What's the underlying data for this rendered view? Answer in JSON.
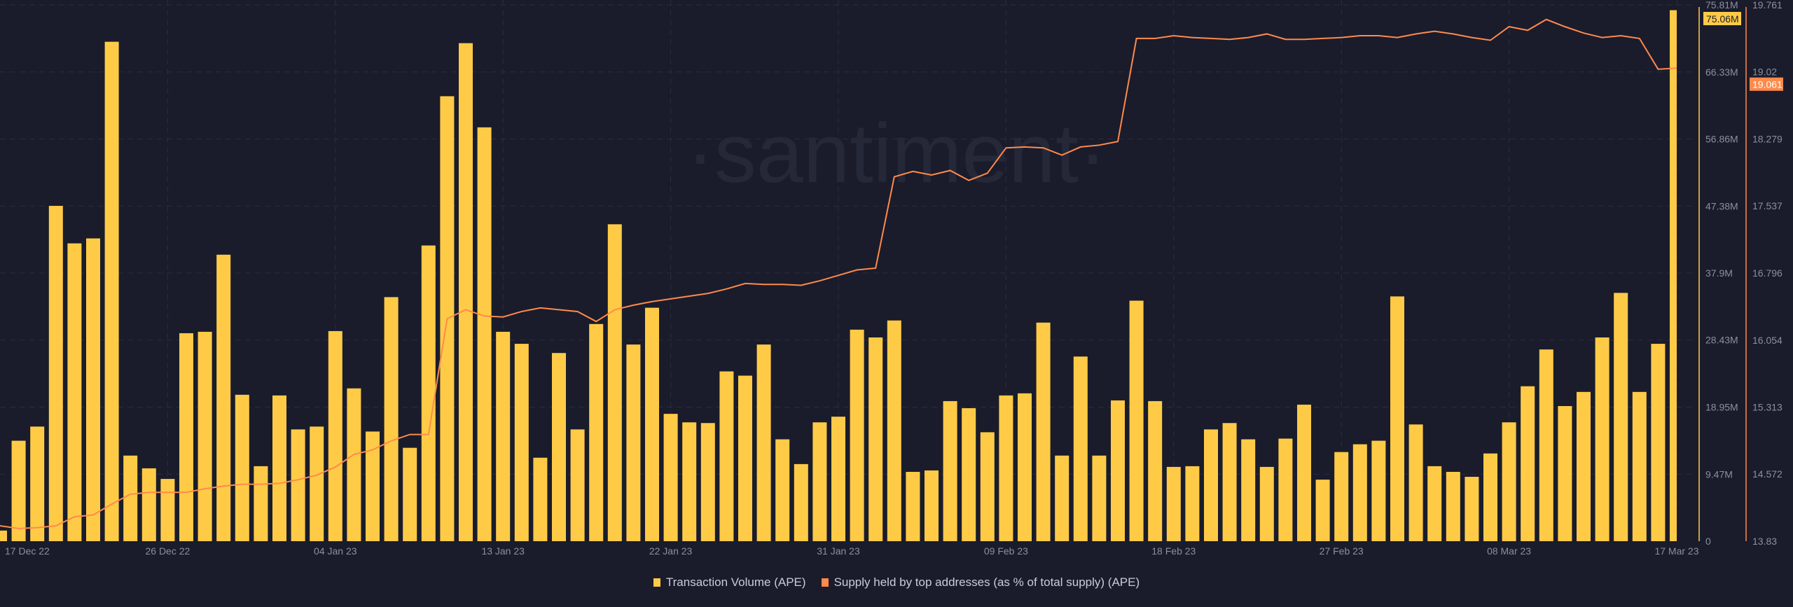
{
  "chart_data": {
    "type": "bar+line",
    "watermark": "·santiment·",
    "dates": [
      "17 Dec 22",
      "18 Dec 22",
      "19 Dec 22",
      "20 Dec 22",
      "21 Dec 22",
      "22 Dec 22",
      "23 Dec 22",
      "24 Dec 22",
      "25 Dec 22",
      "26 Dec 22",
      "27 Dec 22",
      "28 Dec 22",
      "29 Dec 22",
      "30 Dec 22",
      "31 Dec 22",
      "01 Jan 23",
      "02 Jan 23",
      "03 Jan 23",
      "04 Jan 23",
      "05 Jan 23",
      "06 Jan 23",
      "07 Jan 23",
      "08 Jan 23",
      "09 Jan 23",
      "10 Jan 23",
      "11 Jan 23",
      "12 Jan 23",
      "13 Jan 23",
      "14 Jan 23",
      "15 Jan 23",
      "16 Jan 23",
      "17 Jan 23",
      "18 Jan 23",
      "19 Jan 23",
      "20 Jan 23",
      "21 Jan 23",
      "22 Jan 23",
      "23 Jan 23",
      "24 Jan 23",
      "25 Jan 23",
      "26 Jan 23",
      "27 Jan 23",
      "28 Jan 23",
      "29 Jan 23",
      "30 Jan 23",
      "31 Jan 23",
      "01 Feb 23",
      "02 Feb 23",
      "03 Feb 23",
      "04 Feb 23",
      "05 Feb 23",
      "06 Feb 23",
      "07 Feb 23",
      "08 Feb 23",
      "09 Feb 23",
      "10 Feb 23",
      "11 Feb 23",
      "12 Feb 23",
      "13 Feb 23",
      "14 Feb 23",
      "15 Feb 23",
      "16 Feb 23",
      "17 Feb 23",
      "18 Feb 23",
      "19 Feb 23",
      "20 Feb 23",
      "21 Feb 23",
      "22 Feb 23",
      "23 Feb 23",
      "24 Feb 23",
      "25 Feb 23",
      "26 Feb 23",
      "27 Feb 23",
      "28 Feb 23",
      "01 Mar 23",
      "02 Mar 23",
      "03 Mar 23",
      "04 Mar 23",
      "05 Mar 23",
      "06 Mar 23",
      "07 Mar 23",
      "08 Mar 23",
      "09 Mar 23",
      "10 Mar 23",
      "11 Mar 23",
      "12 Mar 23",
      "13 Mar 23",
      "14 Mar 23",
      "15 Mar 23",
      "16 Mar 23",
      "17 Mar 23"
    ],
    "x_tick_labels": [
      "17 Dec 22",
      "26 Dec 22",
      "04 Jan 23",
      "13 Jan 23",
      "22 Jan 23",
      "31 Jan 23",
      "09 Feb 23",
      "18 Feb 23",
      "27 Feb 23",
      "08 Mar 23",
      "17 Mar 23"
    ],
    "series": [
      {
        "name": "Transaction Volume (APE)",
        "type": "bar",
        "color": "#ffcb47",
        "unit": "M",
        "axis": "left",
        "values": [
          1.5,
          14.2,
          16.2,
          47.4,
          42.1,
          42.8,
          70.6,
          12.1,
          10.3,
          8.8,
          29.4,
          29.6,
          40.5,
          20.7,
          10.6,
          20.6,
          15.8,
          16.2,
          29.7,
          21.6,
          15.5,
          34.5,
          13.2,
          41.8,
          62.9,
          70.4,
          58.5,
          29.6,
          27.9,
          11.8,
          26.6,
          15.8,
          30.7,
          44.8,
          27.8,
          33.0,
          18.0,
          16.8,
          16.7,
          24.0,
          23.4,
          27.8,
          14.4,
          10.9,
          16.8,
          17.6,
          29.9,
          28.8,
          31.2,
          9.8,
          10.0,
          19.8,
          18.8,
          15.4,
          20.6,
          20.9,
          30.9,
          12.1,
          26.1,
          12.1,
          19.9,
          34.0,
          19.8,
          10.5,
          10.6,
          15.8,
          16.7,
          14.4,
          10.5,
          14.5,
          19.3,
          8.7,
          12.6,
          13.7,
          14.2,
          34.6,
          16.5,
          10.6,
          9.8,
          9.1,
          12.4,
          16.8,
          21.9,
          27.1,
          19.1,
          21.1,
          28.8,
          35.1,
          21.1,
          27.9,
          75.06
        ],
        "last_value_label": "75.06M"
      },
      {
        "name": "Supply held by top addresses (as % of total supply) (APE)",
        "type": "line",
        "color": "#ff8a4c",
        "axis": "right",
        "values": [
          14.0,
          13.97,
          13.98,
          14.0,
          14.1,
          14.12,
          14.24,
          14.35,
          14.37,
          14.37,
          14.37,
          14.41,
          14.44,
          14.46,
          14.46,
          14.47,
          14.51,
          14.56,
          14.65,
          14.79,
          14.84,
          14.94,
          15.01,
          15.01,
          16.29,
          16.39,
          16.32,
          16.31,
          16.37,
          16.41,
          16.39,
          16.37,
          16.26,
          16.39,
          16.44,
          16.48,
          16.51,
          16.54,
          16.57,
          16.62,
          16.68,
          16.67,
          16.67,
          16.66,
          16.71,
          16.77,
          16.83,
          16.85,
          17.86,
          17.92,
          17.88,
          17.93,
          17.82,
          17.9,
          18.18,
          18.19,
          18.18,
          18.1,
          18.19,
          18.21,
          18.25,
          19.39,
          19.39,
          19.42,
          19.4,
          19.39,
          19.38,
          19.4,
          19.44,
          19.38,
          19.38,
          19.39,
          19.4,
          19.42,
          19.42,
          19.4,
          19.44,
          19.47,
          19.44,
          19.4,
          19.37,
          19.52,
          19.48,
          19.6,
          19.52,
          19.45,
          19.4,
          19.42,
          19.39,
          19.05,
          19.061
        ],
        "last_value_label": "19.061"
      }
    ],
    "left_axis": {
      "ticks": [
        "0",
        "9.47M",
        "18.95M",
        "28.43M",
        "37.9M",
        "47.38M",
        "56.86M",
        "66.33M",
        "75.81M"
      ],
      "tick_values": [
        0,
        9.47,
        18.95,
        28.43,
        37.9,
        47.38,
        56.86,
        66.33,
        75.81
      ],
      "range": [
        0,
        75.81
      ]
    },
    "right_axis": {
      "ticks": [
        "13.83",
        "14.572",
        "15.313",
        "16.054",
        "16.796",
        "17.537",
        "18.279",
        "19.02",
        "19.761"
      ],
      "tick_values": [
        13.83,
        14.572,
        15.313,
        16.054,
        16.796,
        17.537,
        18.279,
        19.02,
        19.761
      ],
      "range": [
        13.83,
        19.761
      ]
    },
    "grid": true,
    "legend_position": "bottom"
  },
  "legend": {
    "items": [
      {
        "label": "Transaction Volume (APE)",
        "color": "#ffcb47"
      },
      {
        "label": "Supply held by top addresses (as % of total supply) (APE)",
        "color": "#ff8a4c"
      }
    ]
  }
}
